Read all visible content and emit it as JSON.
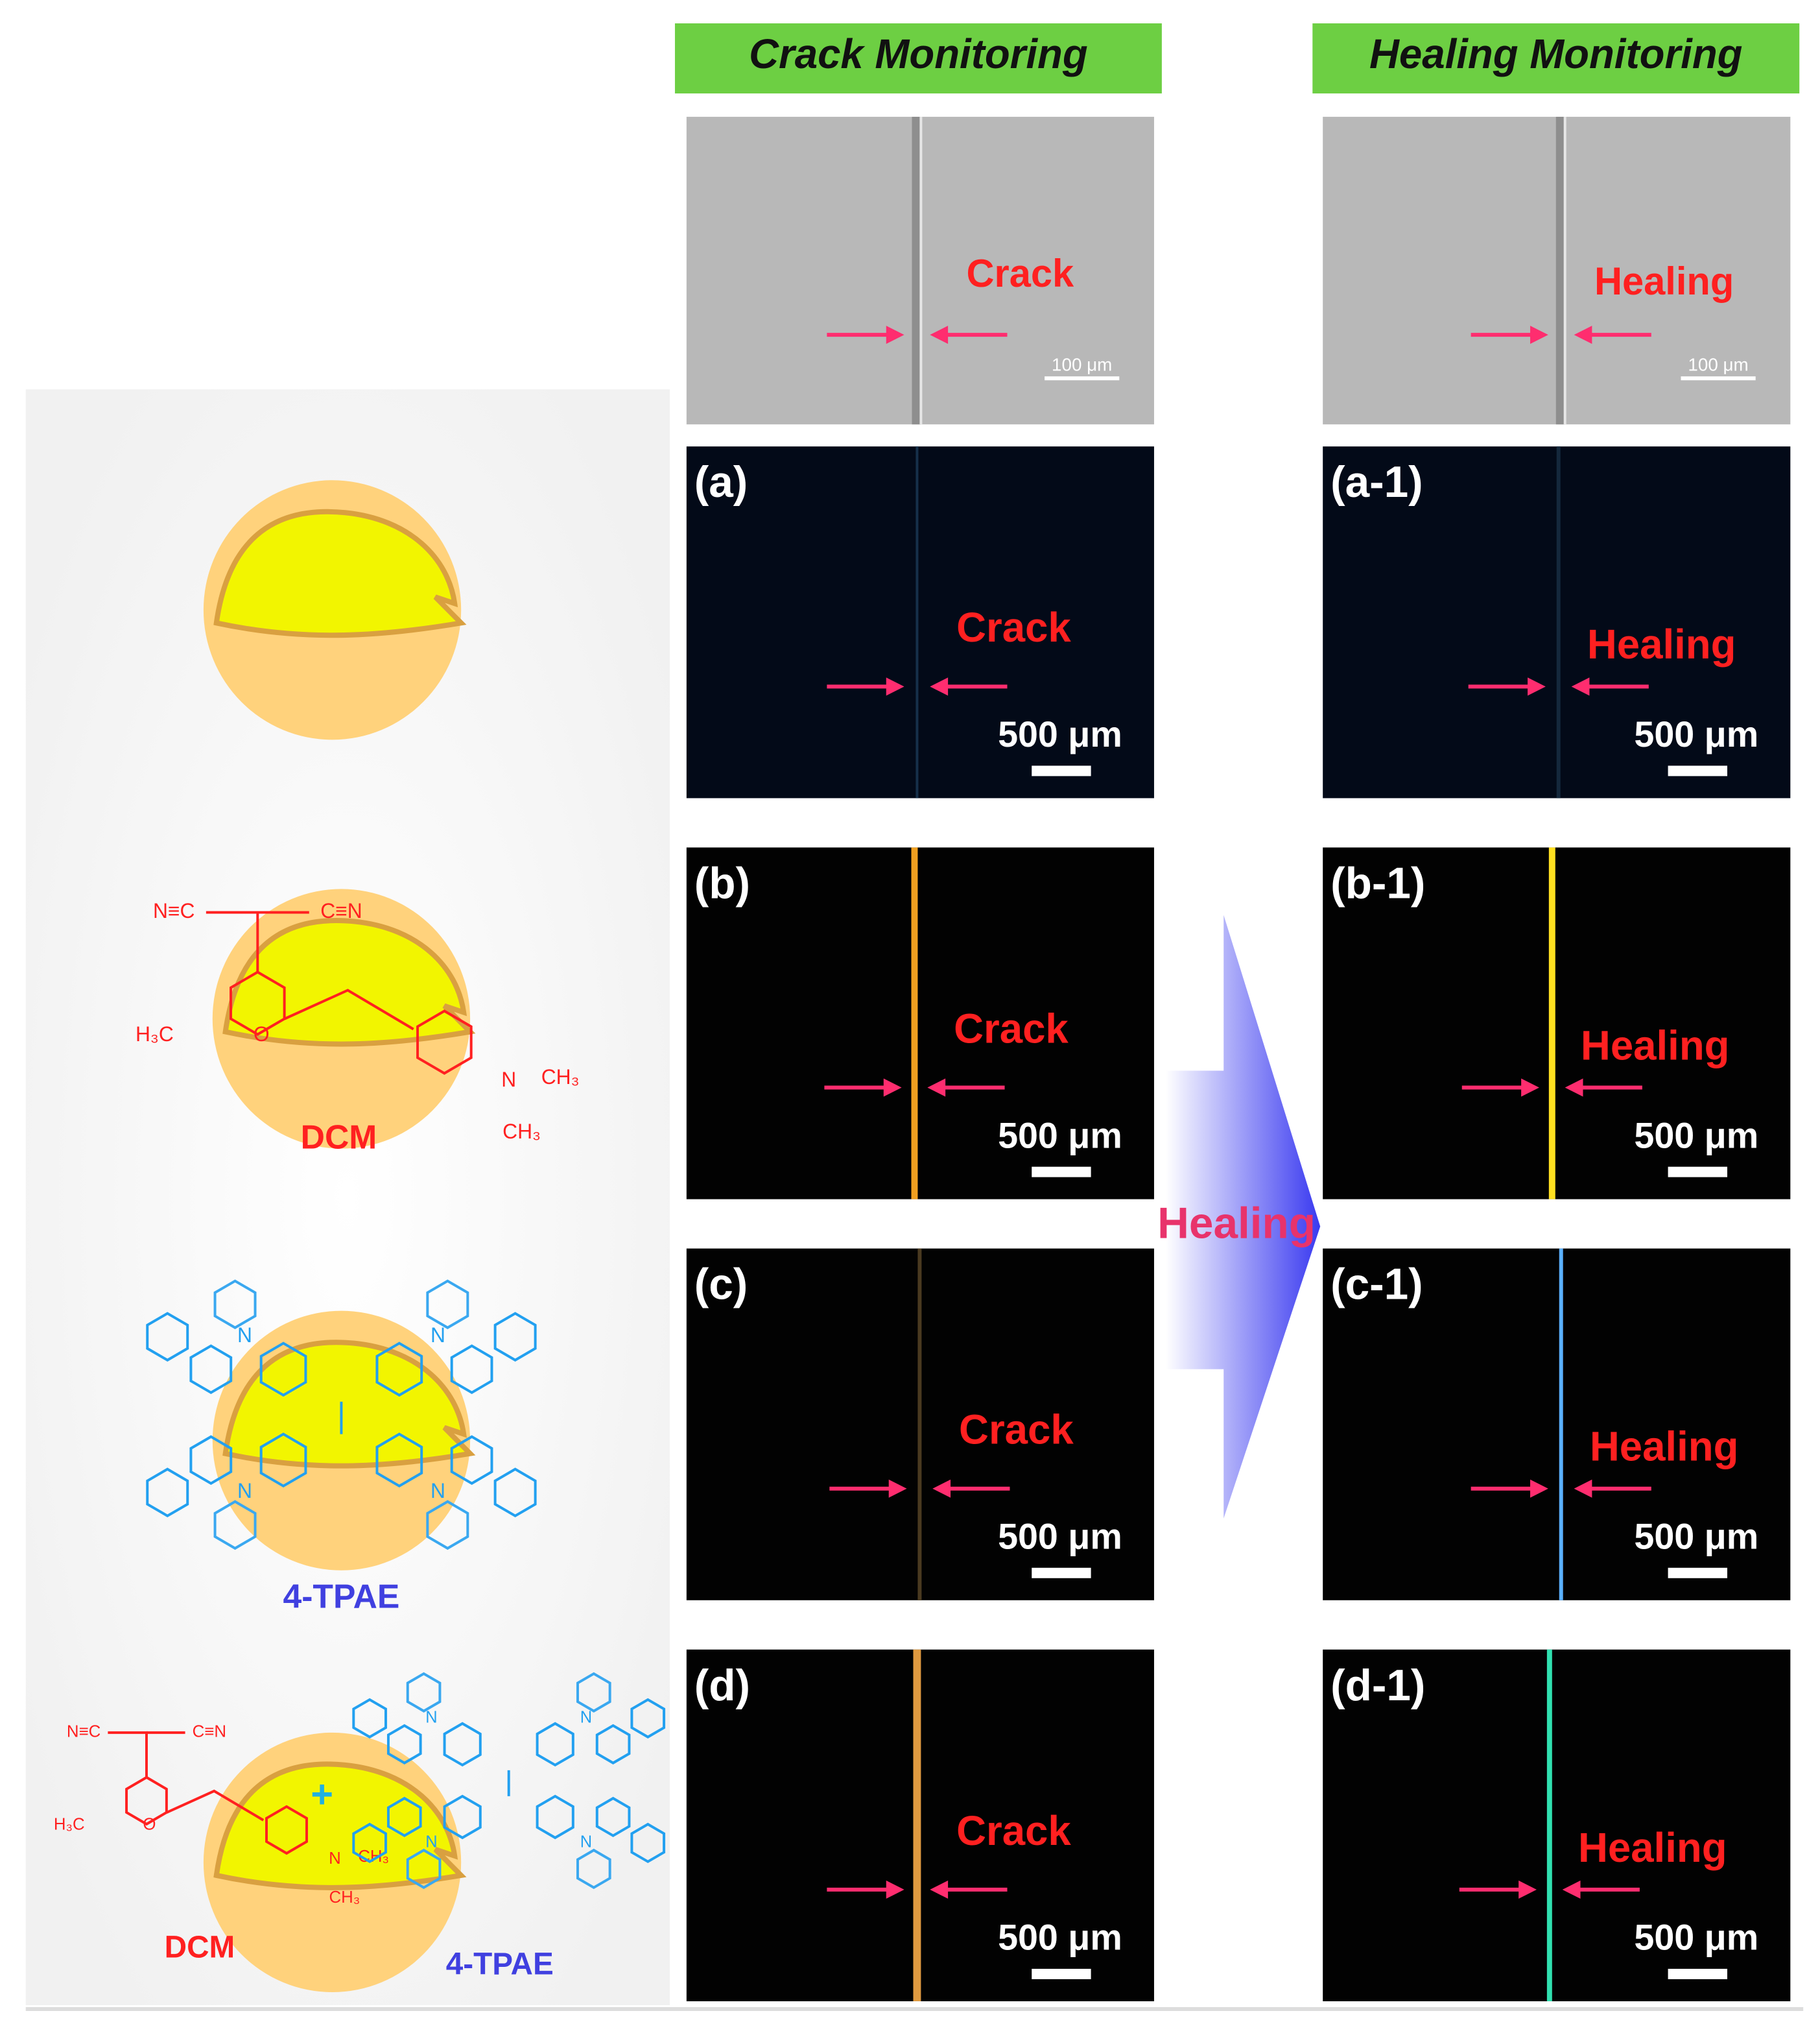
{
  "headers": [
    "Crack Monitoring",
    "Healing Monitoring"
  ],
  "sem": [
    {
      "label": "Crack",
      "scale": "100 μm"
    },
    {
      "label": "Healing",
      "scale": "100 μm"
    }
  ],
  "panels": [
    {
      "id": "(a)",
      "label": "Crack",
      "scale": "500 μm"
    },
    {
      "id": "(b)",
      "label": "Crack",
      "scale": "500 μm"
    },
    {
      "id": "(c)",
      "label": "Crack",
      "scale": "500 μm"
    },
    {
      "id": "(d)",
      "label": "Crack",
      "scale": "500 μm"
    },
    {
      "id": "(a-1)",
      "label": "Healing",
      "scale": "500 μm"
    },
    {
      "id": "(b-1)",
      "label": "Healing",
      "scale": "500 μm"
    },
    {
      "id": "(c-1)",
      "label": "Healing",
      "scale": "500 μm"
    },
    {
      "id": "(d-1)",
      "label": "Healing",
      "scale": "500 μm"
    }
  ],
  "arrow_label": "Healing",
  "molecules": {
    "dcm": "DCM",
    "tpae": "4-TPAE",
    "plus": "+",
    "dcm_groups": [
      "N≡C",
      "C≡N",
      "H₃C",
      "O",
      "N",
      "CH₃",
      "CH₃"
    ],
    "amine": "N"
  }
}
